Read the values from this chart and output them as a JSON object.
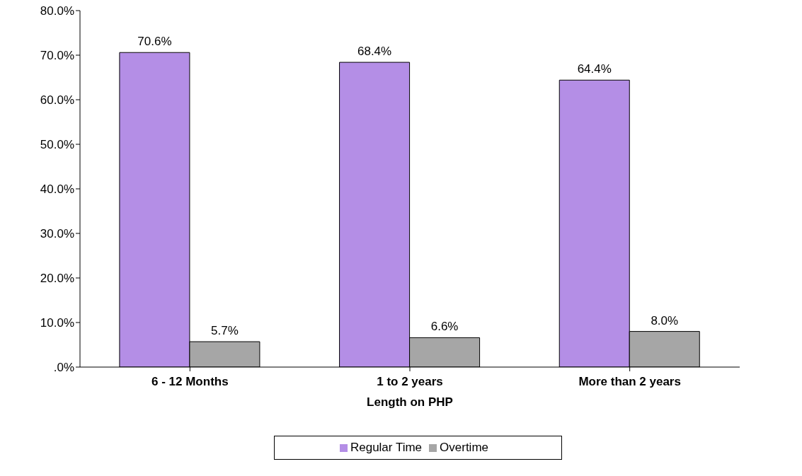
{
  "chart_data": {
    "type": "bar",
    "xlabel": "Length on PHP",
    "categories": [
      "6 - 12 Months",
      "1 to 2 years",
      "More than 2 years"
    ],
    "series": [
      {
        "name": "Regular Time",
        "color": "#b48ee6",
        "values": [
          70.6,
          68.4,
          64.4
        ],
        "value_labels": [
          "70.6%",
          "68.4%",
          "64.4%"
        ]
      },
      {
        "name": "Overtime",
        "color": "#a6a6a6",
        "values": [
          5.7,
          6.6,
          8.0
        ],
        "value_labels": [
          "5.7%",
          "6.6%",
          "8.0%"
        ]
      }
    ],
    "ylim": [
      0,
      80
    ],
    "yticks": [
      {
        "value": 0,
        "label": ".0%"
      },
      {
        "value": 10,
        "label": "10.0%"
      },
      {
        "value": 20,
        "label": "20.0%"
      },
      {
        "value": 30,
        "label": "30.0%"
      },
      {
        "value": 40,
        "label": "40.0%"
      },
      {
        "value": 50,
        "label": "50.0%"
      },
      {
        "value": 60,
        "label": "60.0%"
      },
      {
        "value": 70,
        "label": "70.0%"
      },
      {
        "value": 80,
        "label": "80.0%"
      }
    ],
    "grid": false,
    "legend": "bottom"
  }
}
